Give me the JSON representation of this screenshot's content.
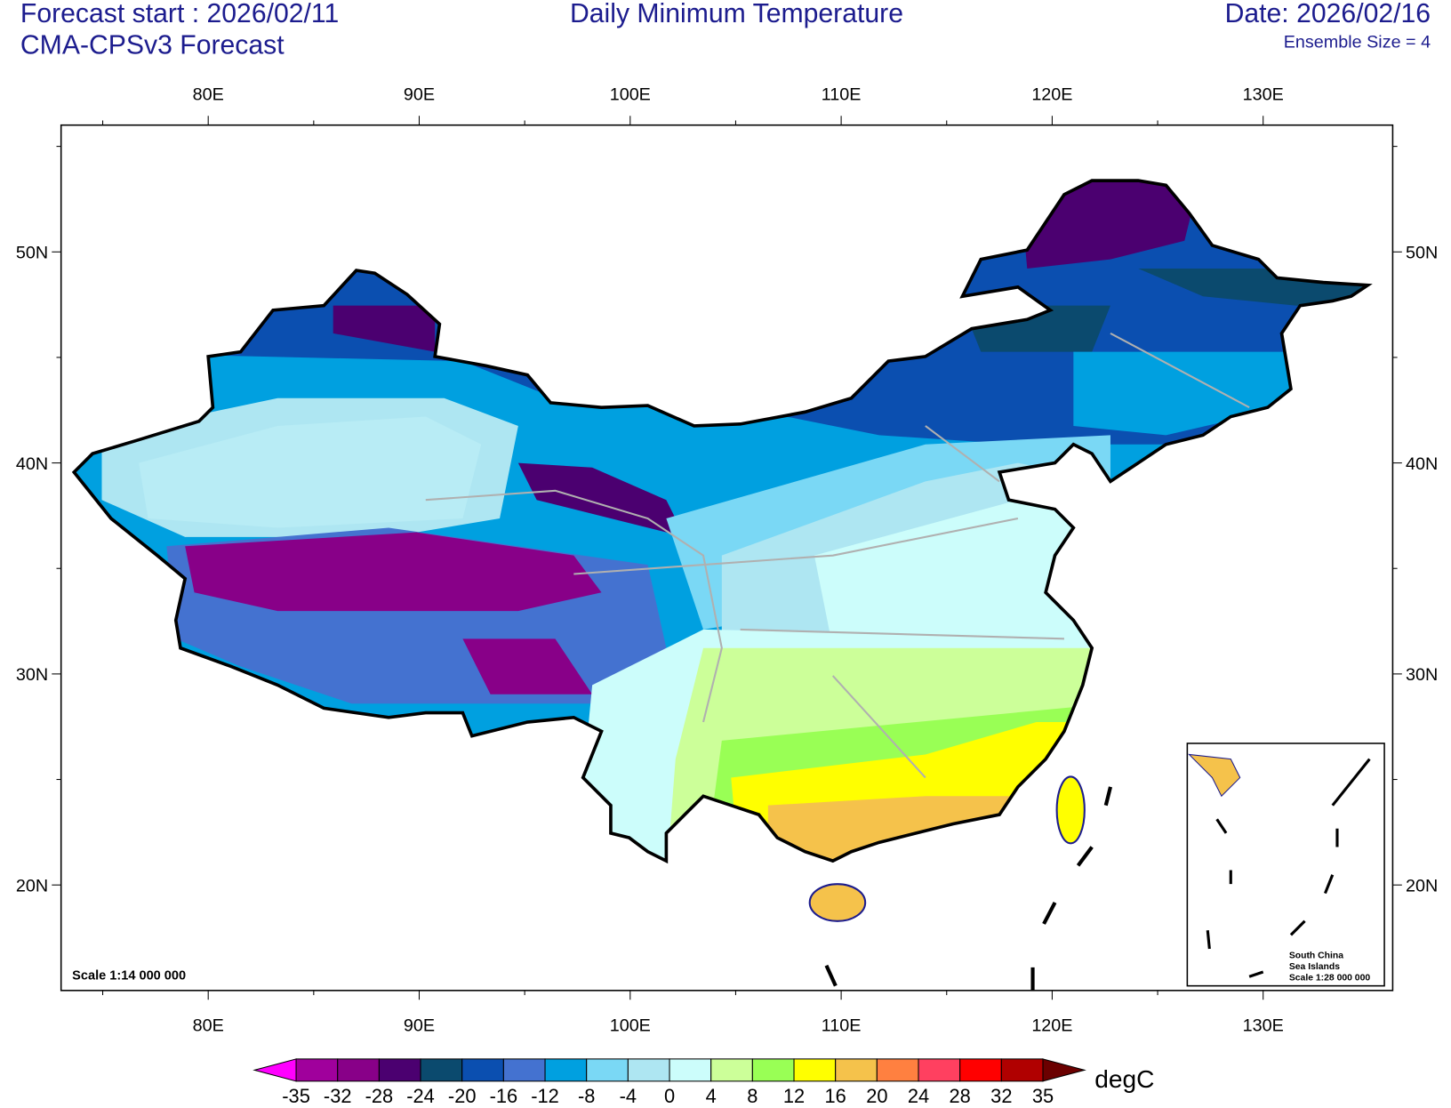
{
  "header": {
    "left_title": "Forecast start : 2026/02/11",
    "left_subtitle": "CMA-CPSv3 Forecast",
    "center_title": "Daily Minimum Temperature",
    "right_title": "Date: 2026/02/16",
    "right_subtitle": "Ensemble Size = 4"
  },
  "map": {
    "lon_ticks": [
      {
        "value": 80,
        "label": "80E"
      },
      {
        "value": 90,
        "label": "90E"
      },
      {
        "value": 100,
        "label": "100E"
      },
      {
        "value": 110,
        "label": "110E"
      },
      {
        "value": 120,
        "label": "120E"
      },
      {
        "value": 130,
        "label": "130E"
      }
    ],
    "lat_ticks": [
      {
        "value": 50,
        "label": "50N"
      },
      {
        "value": 40,
        "label": "40N"
      },
      {
        "value": 30,
        "label": "30N"
      },
      {
        "value": 20,
        "label": "20N"
      }
    ],
    "scale_label": "Scale 1:14 000 000",
    "inset_label": [
      "South China",
      "Sea Islands",
      "Scale 1:28 000 000"
    ]
  },
  "colorbar": {
    "levels": [
      -35,
      -32,
      -28,
      -24,
      -20,
      -16,
      -12,
      -8,
      -4,
      0,
      4,
      8,
      12,
      16,
      20,
      24,
      28,
      32,
      35
    ],
    "colors": [
      "#ff00ff",
      "#a0009c",
      "#880088",
      "#4b0070",
      "#0b4a6e",
      "#0b4fb0",
      "#4472d0",
      "#00a0e0",
      "#7ad8f5",
      "#aee6f2",
      "#ccfdfb",
      "#ccff99",
      "#99ff55",
      "#ffff00",
      "#f5c24b",
      "#ff8040",
      "#ff4060",
      "#ff0000",
      "#b00000",
      "#6b0000"
    ],
    "unit": "degC"
  }
}
